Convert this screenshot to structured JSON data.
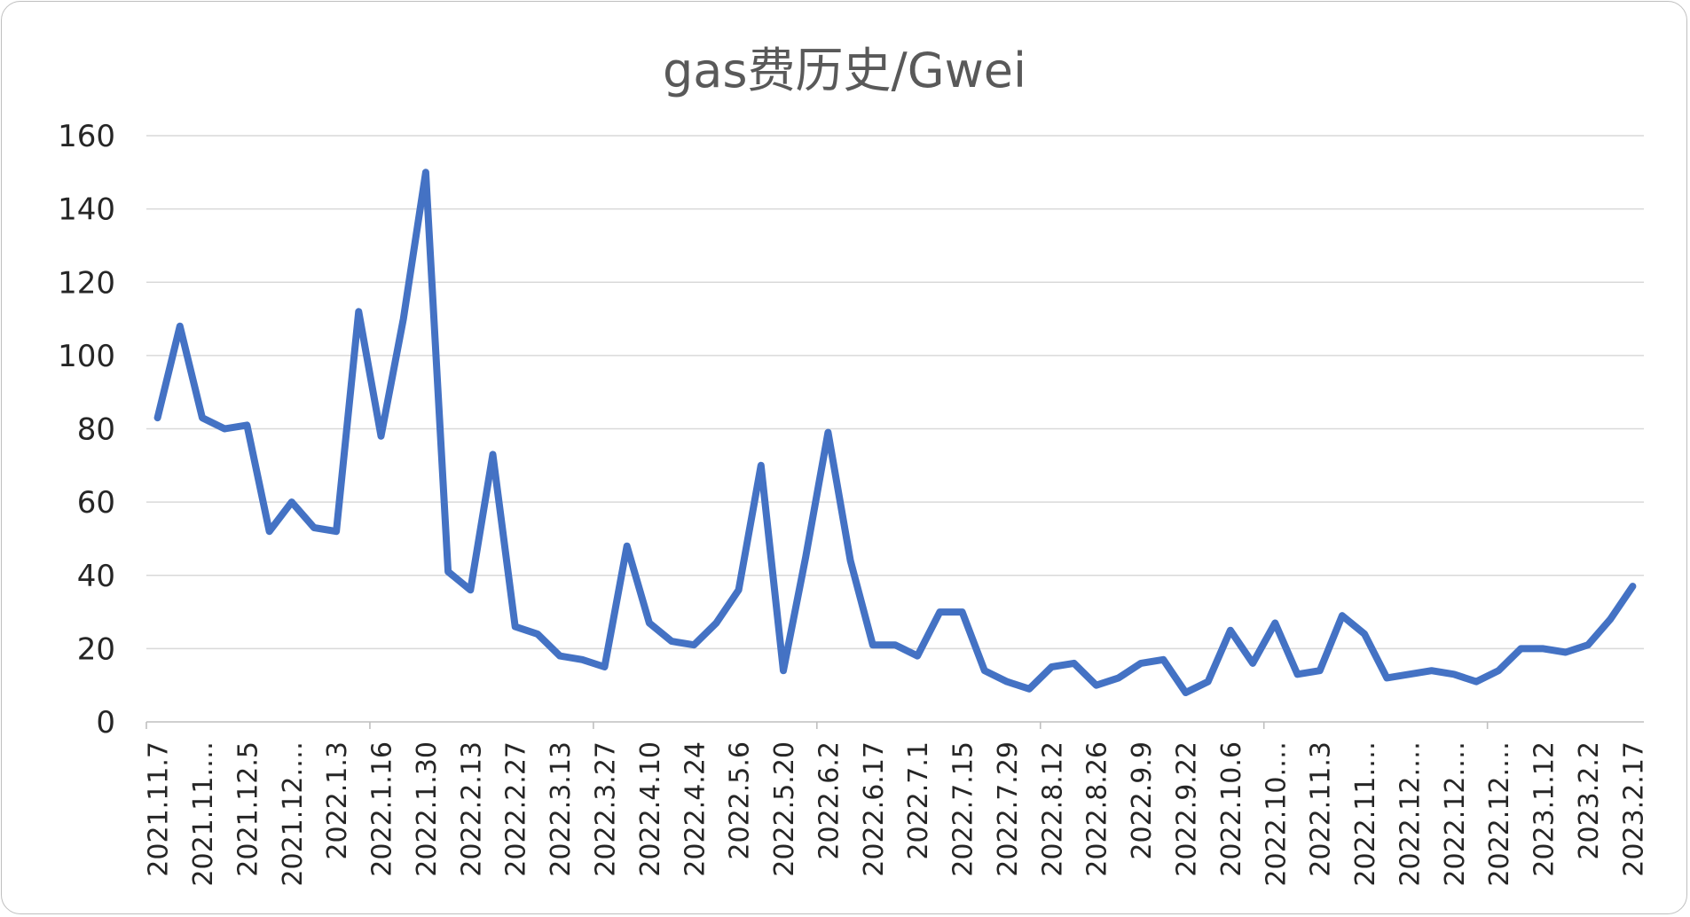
{
  "chart_data": {
    "type": "line",
    "title": "gas费历史/Gwei",
    "xlabel": "",
    "ylabel": "",
    "ylim": [
      0,
      160
    ],
    "yticks": [
      0,
      20,
      40,
      60,
      80,
      100,
      120,
      140,
      160
    ],
    "grid": true,
    "legend": "none",
    "x_tick_labels": [
      "2021.11.7",
      "2021.11.…",
      "2021.12.5",
      "2021.12.…",
      "2022.1.3",
      "2022.1.16",
      "2022.1.30",
      "2022.2.13",
      "2022.2.27",
      "2022.3.13",
      "2022.3.27",
      "2022.4.10",
      "2022.4.24",
      "2022.5.6",
      "2022.5.20",
      "2022.6.2",
      "2022.6.17",
      "2022.7.1",
      "2022.7.15",
      "2022.7.29",
      "2022.8.12",
      "2022.8.26",
      "2022.9.9",
      "2022.9.22",
      "2022.10.6",
      "2022.10.…",
      "2022.11.3",
      "2022.11.…",
      "2022.12.…",
      "2022.12.…",
      "2022.12.…",
      "2023.1.12",
      "2023.2.2",
      "2023.2.17"
    ],
    "series": [
      {
        "color": "#4472C4",
        "values": [
          83,
          108,
          83,
          80,
          81,
          52,
          60,
          53,
          52,
          112,
          78,
          110,
          150,
          41,
          36,
          73,
          26,
          24,
          18,
          17,
          15,
          48,
          27,
          22,
          21,
          27,
          36,
          70,
          14,
          45,
          79,
          44,
          21,
          21,
          18,
          30,
          30,
          14,
          11,
          9,
          15,
          16,
          10,
          12,
          16,
          17,
          8,
          11,
          25,
          16,
          27,
          13,
          14,
          29,
          24,
          12,
          13,
          14,
          13,
          11,
          14,
          20,
          20,
          19,
          21,
          28,
          37
        ]
      }
    ]
  }
}
